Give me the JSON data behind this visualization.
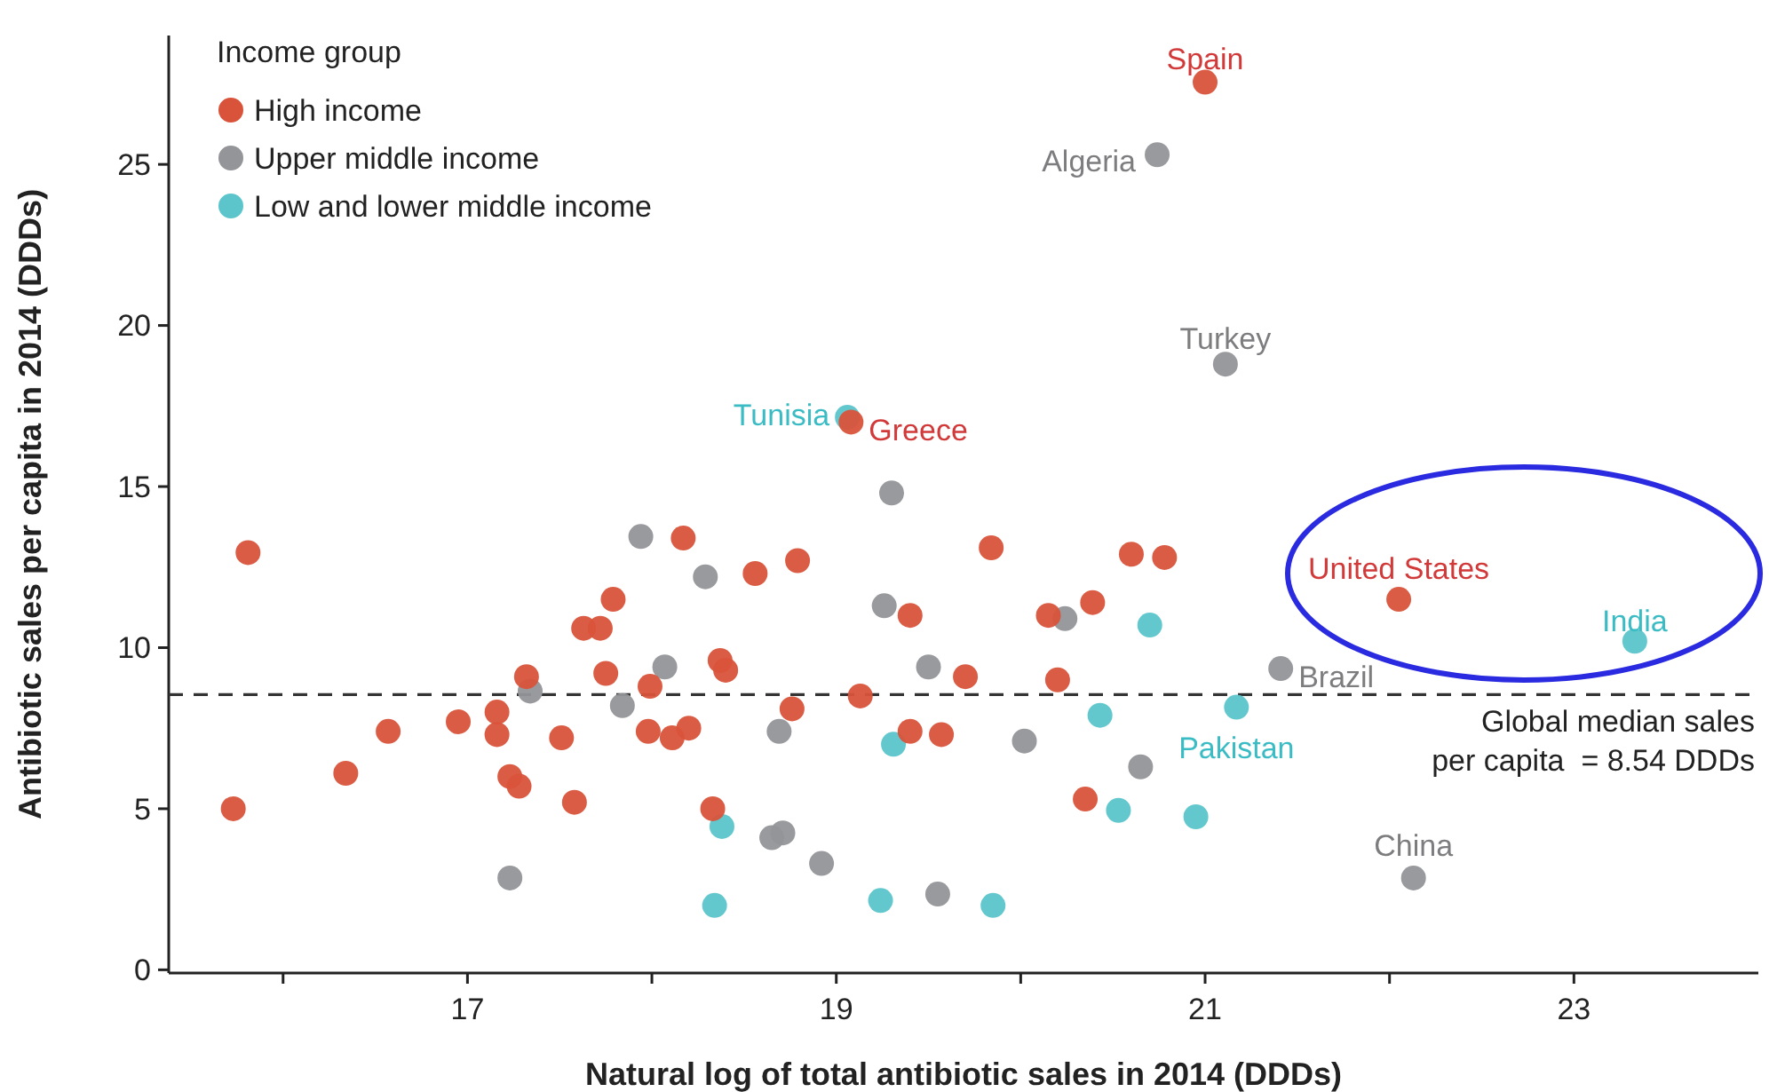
{
  "chart_data": {
    "type": "scatter",
    "xlabel": "Natural log of total antibiotic sales in 2014 (DDDs)",
    "ylabel": "Antibiotic sales per capita in 2014 (DDDs)",
    "legend_title": "Income group",
    "legend": "top left",
    "marker": "circle",
    "grid": false,
    "xlim": [
      15.38,
      24.0
    ],
    "xticks": [
      {
        "value": 16,
        "label": null
      },
      17,
      {
        "value": 18,
        "label": null
      },
      19,
      {
        "value": 20,
        "label": null
      },
      21,
      {
        "value": 22,
        "label": null
      },
      23
    ],
    "ylim": [
      -0.1,
      29
    ],
    "yticks": [
      0,
      5,
      10,
      15,
      20,
      25
    ],
    "series": [
      {
        "name": "High income",
        "color": "#d9533a",
        "x": [
          15.81,
          15.73,
          16.34,
          16.57,
          16.95,
          17.16,
          17.16,
          17.23,
          17.28,
          17.32,
          17.51,
          17.58,
          17.63,
          17.72,
          17.79,
          17.75,
          17.99,
          17.98,
          18.11,
          18.2,
          18.17,
          18.37,
          18.4,
          18.56,
          18.79,
          18.76,
          18.33,
          19.08,
          19.13,
          19.4,
          19.4,
          19.57,
          19.7,
          19.84,
          20.15,
          20.2,
          20.39,
          20.35,
          20.6,
          20.78,
          21.0,
          22.05
        ],
        "values": [
          12.95,
          5.0,
          6.1,
          7.4,
          7.7,
          8.0,
          7.3,
          6.0,
          5.7,
          9.1,
          7.2,
          5.2,
          10.6,
          10.6,
          11.5,
          9.2,
          8.8,
          7.4,
          7.2,
          7.5,
          13.4,
          9.6,
          9.3,
          12.3,
          12.7,
          8.1,
          5.0,
          17.0,
          8.5,
          11.0,
          7.4,
          7.3,
          9.1,
          13.1,
          11.0,
          9.0,
          11.4,
          5.3,
          12.9,
          12.8,
          27.55,
          11.5
        ]
      },
      {
        "name": "Upper middle income",
        "color": "#939598",
        "x": [
          17.94,
          18.07,
          17.84,
          17.34,
          17.23,
          18.29,
          18.69,
          18.65,
          18.71,
          18.92,
          19.3,
          19.26,
          19.5,
          19.55,
          20.02,
          20.24,
          20.65,
          21.41,
          22.13,
          20.74,
          21.11
        ],
        "values": [
          13.45,
          9.4,
          8.2,
          8.65,
          2.85,
          12.2,
          7.4,
          4.1,
          4.25,
          3.3,
          14.8,
          11.3,
          9.4,
          2.35,
          7.1,
          10.9,
          6.3,
          9.35,
          2.85,
          25.3,
          18.8
        ]
      },
      {
        "name": "Low and lower middle income",
        "color": "#5bc5cb",
        "x": [
          18.38,
          18.34,
          19.31,
          19.24,
          19.85,
          20.43,
          20.53,
          20.7,
          21.17,
          20.95,
          23.33,
          19.06
        ],
        "values": [
          4.45,
          2.0,
          7.0,
          2.15,
          2.0,
          7.9,
          4.95,
          10.7,
          8.15,
          4.75,
          10.2,
          17.15
        ]
      }
    ],
    "ref_lines": [
      {
        "axis": "y",
        "value": 8.54,
        "label": "Global median sales\nper capita  = 8.54 DDDs",
        "color": "#333333",
        "line_style": "dashed"
      }
    ],
    "annotations": [
      {
        "text": "Spain",
        "x": 21.0,
        "y": 27.55
      },
      {
        "text": "Algeria",
        "x": 20.74,
        "y": 25.3
      },
      {
        "text": "Turkey",
        "x": 21.11,
        "y": 18.8
      },
      {
        "text": "Tunisia",
        "x": 19.06,
        "y": 17.15
      },
      {
        "text": "Greece",
        "x": 19.08,
        "y": 17.0
      },
      {
        "text": "United States",
        "x": 22.05,
        "y": 11.5
      },
      {
        "text": "India",
        "x": 23.33,
        "y": 10.2
      },
      {
        "text": "Brazil",
        "x": 21.41,
        "y": 9.35
      },
      {
        "text": "Pakistan",
        "x": 21.17,
        "y": 8.15
      },
      {
        "text": "China",
        "x": 22.13,
        "y": 2.85
      }
    ]
  }
}
